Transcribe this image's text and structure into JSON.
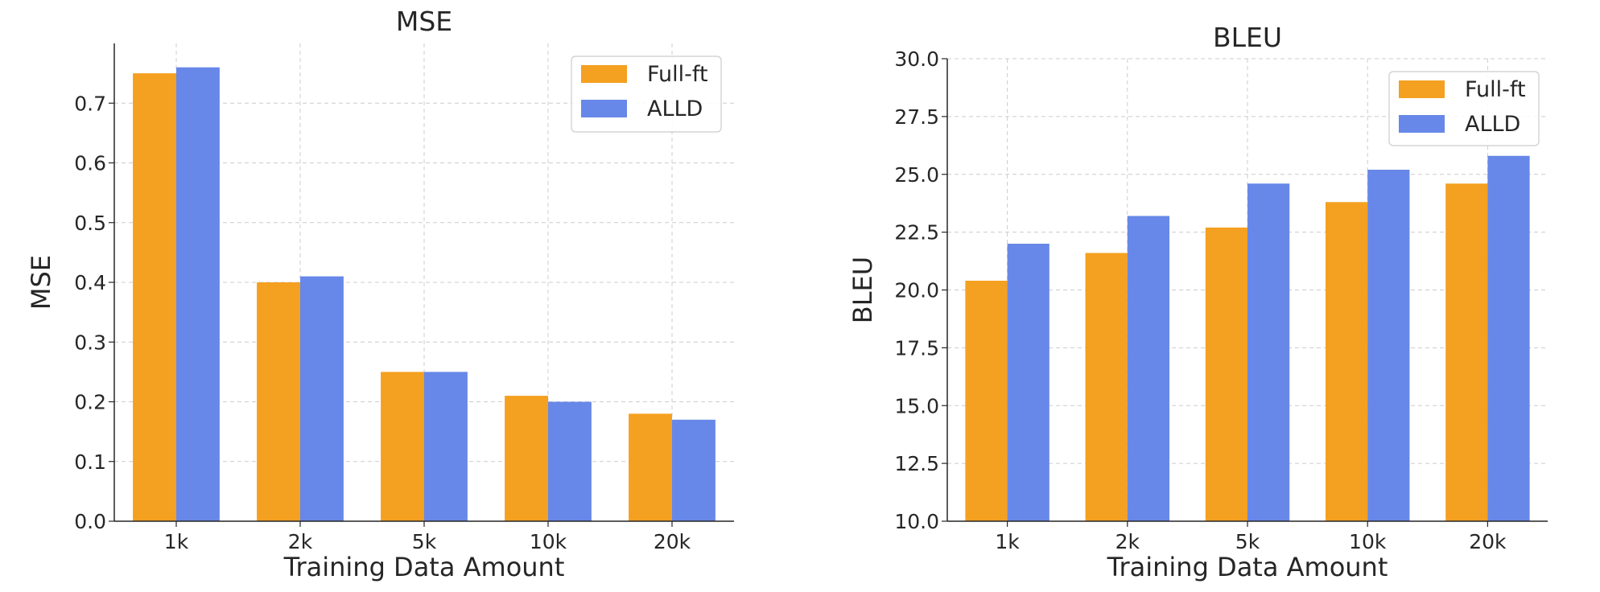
{
  "chart_data": [
    {
      "type": "bar",
      "title": "MSE",
      "xlabel": "Training Data Amount",
      "ylabel": "MSE",
      "categories": [
        "1k",
        "2k",
        "5k",
        "10k",
        "20k"
      ],
      "ylim": [
        0.0,
        0.8
      ],
      "yticks": [
        "0.0",
        "0.1",
        "0.2",
        "0.3",
        "0.4",
        "0.5",
        "0.6",
        "0.7"
      ],
      "grid": true,
      "legend_position": "top-right",
      "series": [
        {
          "name": "Full-ft",
          "values": [
            0.75,
            0.4,
            0.25,
            0.21,
            0.18
          ],
          "color": "#F4A020"
        },
        {
          "name": "ALLD",
          "values": [
            0.76,
            0.41,
            0.25,
            0.2,
            0.17
          ],
          "color": "#6788E8"
        }
      ]
    },
    {
      "type": "bar",
      "title": "BLEU",
      "xlabel": "Training Data Amount",
      "ylabel": "BLEU",
      "categories": [
        "1k",
        "2k",
        "5k",
        "10k",
        "20k"
      ],
      "ylim": [
        10.0,
        30.0
      ],
      "yticks": [
        "10.0",
        "12.5",
        "15.0",
        "17.5",
        "20.0",
        "22.5",
        "25.0",
        "27.5",
        "30.0"
      ],
      "grid": true,
      "legend_position": "top-right",
      "series": [
        {
          "name": "Full-ft",
          "values": [
            20.4,
            21.6,
            22.7,
            23.8,
            24.6
          ],
          "color": "#F4A020"
        },
        {
          "name": "ALLD",
          "values": [
            22.0,
            23.2,
            24.6,
            25.2,
            25.8
          ],
          "color": "#6788E8"
        }
      ]
    }
  ]
}
